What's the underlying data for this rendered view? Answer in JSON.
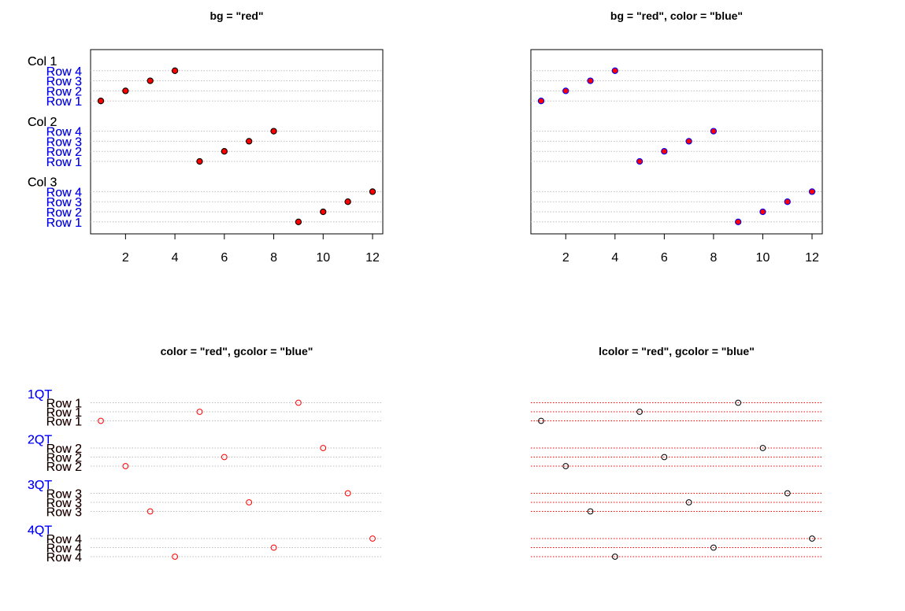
{
  "colors": {
    "black": "#000000",
    "red": "#ff0000",
    "blue": "#0000ff",
    "grid": "#bebebe",
    "background": "#ffffff"
  },
  "chart_data": [
    {
      "type": "scatter",
      "title": "bg = \"red\"",
      "style": {
        "bg": "red",
        "point_color": "black",
        "label_color": "black",
        "group_color": "black",
        "line_color": "grey",
        "line_style": "dotted",
        "pch": "filled-circle"
      },
      "has_axis": true,
      "has_box": true,
      "xlim": [
        1,
        12
      ],
      "x_ticks": [
        "2",
        "4",
        "6",
        "8",
        "10",
        "12"
      ],
      "groups": [
        {
          "label": "Col 1",
          "rows": [
            {
              "label": "Row 4",
              "value": 4
            },
            {
              "label": "Row 3",
              "value": 3
            },
            {
              "label": "Row 2",
              "value": 2
            },
            {
              "label": "Row 1",
              "value": 1
            }
          ]
        },
        {
          "label": "Col 2",
          "rows": [
            {
              "label": "Row 4",
              "value": 8
            },
            {
              "label": "Row 3",
              "value": 7
            },
            {
              "label": "Row 2",
              "value": 6
            },
            {
              "label": "Row 1",
              "value": 5
            }
          ]
        },
        {
          "label": "Col 3",
          "rows": [
            {
              "label": "Row 4",
              "value": 12
            },
            {
              "label": "Row 3",
              "value": 11
            },
            {
              "label": "Row 2",
              "value": 10
            },
            {
              "label": "Row 1",
              "value": 9
            }
          ]
        }
      ]
    },
    {
      "type": "scatter",
      "title": "bg = \"red\", color = \"blue\"",
      "style": {
        "bg": "red",
        "point_color": "blue",
        "label_color": "blue",
        "group_color": "black",
        "line_color": "grey",
        "line_style": "dotted",
        "pch": "filled-circle"
      },
      "has_axis": true,
      "has_box": true,
      "xlim": [
        1,
        12
      ],
      "x_ticks": [
        "2",
        "4",
        "6",
        "8",
        "10",
        "12"
      ],
      "groups": [
        {
          "label": "Col 1",
          "rows": [
            {
              "label": "Row 4",
              "value": 4
            },
            {
              "label": "Row 3",
              "value": 3
            },
            {
              "label": "Row 2",
              "value": 2
            },
            {
              "label": "Row 1",
              "value": 1
            }
          ]
        },
        {
          "label": "Col 2",
          "rows": [
            {
              "label": "Row 4",
              "value": 8
            },
            {
              "label": "Row 3",
              "value": 7
            },
            {
              "label": "Row 2",
              "value": 6
            },
            {
              "label": "Row 1",
              "value": 5
            }
          ]
        },
        {
          "label": "Col 3",
          "rows": [
            {
              "label": "Row 4",
              "value": 12
            },
            {
              "label": "Row 3",
              "value": 11
            },
            {
              "label": "Row 2",
              "value": 10
            },
            {
              "label": "Row 1",
              "value": 9
            }
          ]
        }
      ]
    },
    {
      "type": "scatter",
      "title": "color = \"red\", gcolor = \"blue\"",
      "style": {
        "bg": "none",
        "point_color": "red",
        "label_color": "red",
        "group_color": "blue",
        "line_color": "grey",
        "line_style": "dotted",
        "pch": "open-circle"
      },
      "has_axis": false,
      "has_box": false,
      "xlim": [
        1,
        12
      ],
      "x_ticks": [],
      "groups": [
        {
          "label": "1QT",
          "rows": [
            {
              "label": "Row 1",
              "value": 9
            },
            {
              "label": "Row 1",
              "value": 5
            },
            {
              "label": "Row 1",
              "value": 1
            }
          ]
        },
        {
          "label": "2QT",
          "rows": [
            {
              "label": "Row 2",
              "value": 10
            },
            {
              "label": "Row 2",
              "value": 6
            },
            {
              "label": "Row 2",
              "value": 2
            }
          ]
        },
        {
          "label": "3QT",
          "rows": [
            {
              "label": "Row 3",
              "value": 11
            },
            {
              "label": "Row 3",
              "value": 7
            },
            {
              "label": "Row 3",
              "value": 3
            }
          ]
        },
        {
          "label": "4QT",
          "rows": [
            {
              "label": "Row 4",
              "value": 12
            },
            {
              "label": "Row 4",
              "value": 8
            },
            {
              "label": "Row 4",
              "value": 4
            }
          ]
        }
      ]
    },
    {
      "type": "scatter",
      "title": "lcolor = \"red\", gcolor = \"blue\"",
      "style": {
        "bg": "none",
        "point_color": "black",
        "label_color": "black",
        "group_color": "blue",
        "line_color": "red",
        "line_style": "dotted",
        "pch": "open-circle"
      },
      "has_axis": false,
      "has_box": false,
      "xlim": [
        1,
        12
      ],
      "x_ticks": [],
      "groups": [
        {
          "label": "1QT",
          "rows": [
            {
              "label": "Row 1",
              "value": 9
            },
            {
              "label": "Row 1",
              "value": 5
            },
            {
              "label": "Row 1",
              "value": 1
            }
          ]
        },
        {
          "label": "2QT",
          "rows": [
            {
              "label": "Row 2",
              "value": 10
            },
            {
              "label": "Row 2",
              "value": 6
            },
            {
              "label": "Row 2",
              "value": 2
            }
          ]
        },
        {
          "label": "3QT",
          "rows": [
            {
              "label": "Row 3",
              "value": 11
            },
            {
              "label": "Row 3",
              "value": 7
            },
            {
              "label": "Row 3",
              "value": 3
            }
          ]
        },
        {
          "label": "4QT",
          "rows": [
            {
              "label": "Row 4",
              "value": 12
            },
            {
              "label": "Row 4",
              "value": 8
            },
            {
              "label": "Row 4",
              "value": 4
            }
          ]
        }
      ]
    }
  ]
}
